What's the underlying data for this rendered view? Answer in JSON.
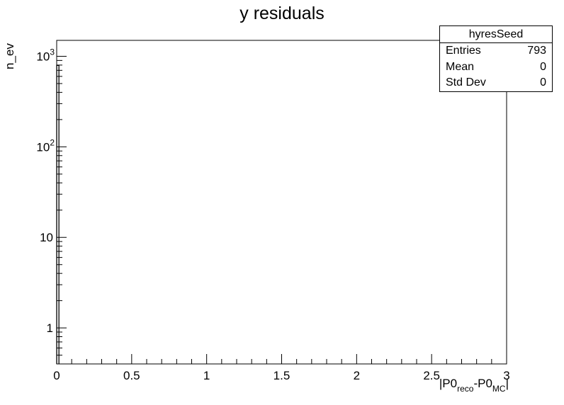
{
  "chart_data": {
    "type": "bar",
    "title": "y residuals",
    "ylabel": "n_ev",
    "xlabel_parts": [
      "|P0",
      "reco",
      "-P0",
      "MC",
      "|"
    ],
    "xlim": [
      0,
      3
    ],
    "ylim": [
      0.4,
      1500
    ],
    "yscale": "log",
    "x_ticks": [
      "0",
      "0.5",
      "1",
      "1.5",
      "2",
      "2.5",
      "3"
    ],
    "y_ticks": [
      {
        "value": 1,
        "base": "1",
        "exp": ""
      },
      {
        "value": 10,
        "base": "10",
        "exp": ""
      },
      {
        "value": 100,
        "base": "10",
        "exp": "2"
      },
      {
        "value": 1000,
        "base": "10",
        "exp": "3"
      }
    ],
    "series": [
      {
        "bins_x": [
          0
        ],
        "values": [
          793
        ]
      }
    ],
    "grid": false
  },
  "stats": {
    "name": "hyresSeed",
    "rows": [
      {
        "label": "Entries",
        "value": "793"
      },
      {
        "label": "Mean",
        "value": "0"
      },
      {
        "label": "Std Dev",
        "value": "0"
      }
    ]
  }
}
